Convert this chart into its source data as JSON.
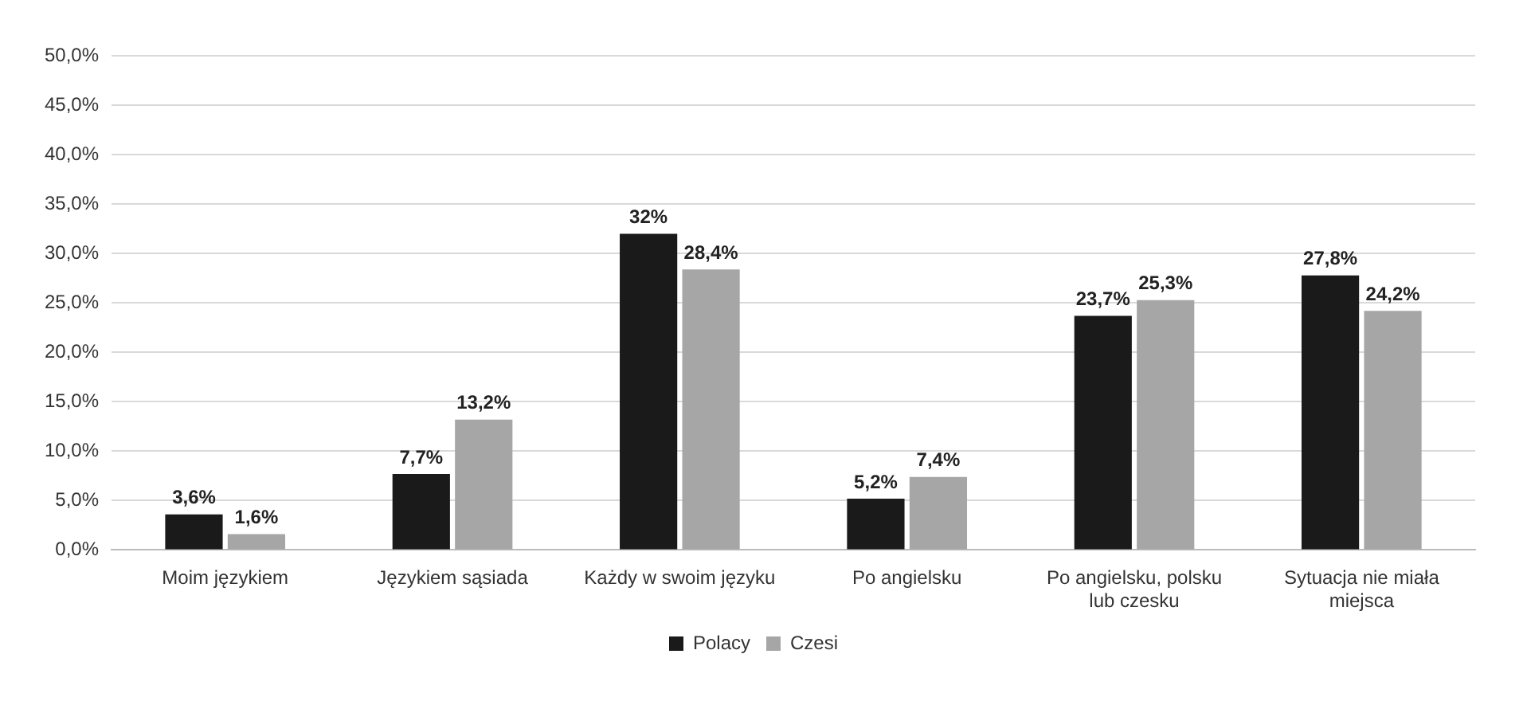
{
  "chart_data": {
    "type": "bar",
    "categories": [
      "Moim językiem",
      "Językiem sąsiada",
      "Każdy w swoim języku",
      "Po angielsku",
      "Po angielsku, polsku lub czesku",
      "Sytuacja nie miała miejsca"
    ],
    "series": [
      {
        "name": "Polacy",
        "color": "#1a1a1a",
        "values": [
          3.6,
          7.7,
          32,
          5.2,
          23.7,
          27.8
        ],
        "value_labels": [
          "3,6%",
          "7,7%",
          "32%",
          "5,2%",
          "23,7%",
          "27,8%"
        ]
      },
      {
        "name": "Czesi",
        "color": "#a6a6a6",
        "values": [
          1.6,
          13.2,
          28.4,
          7.4,
          25.3,
          24.2
        ],
        "value_labels": [
          "1,6%",
          "13,2%",
          "28,4%",
          "7,4%",
          "25,3%",
          "24,2%"
        ]
      }
    ],
    "ylim": [
      0,
      50
    ],
    "yticks": [
      {
        "value": 0,
        "label": "0,0%"
      },
      {
        "value": 5,
        "label": "5,0%"
      },
      {
        "value": 10,
        "label": "10,0%"
      },
      {
        "value": 15,
        "label": "15,0%"
      },
      {
        "value": 20,
        "label": "20,0%"
      },
      {
        "value": 25,
        "label": "25,0%"
      },
      {
        "value": 30,
        "label": "30,0%"
      },
      {
        "value": 35,
        "label": "35,0%"
      },
      {
        "value": 40,
        "label": "40,0%"
      },
      {
        "value": 45,
        "label": "45,0%"
      },
      {
        "value": 50,
        "label": "50,0%"
      }
    ],
    "grid": "y",
    "legend": "bottom"
  }
}
